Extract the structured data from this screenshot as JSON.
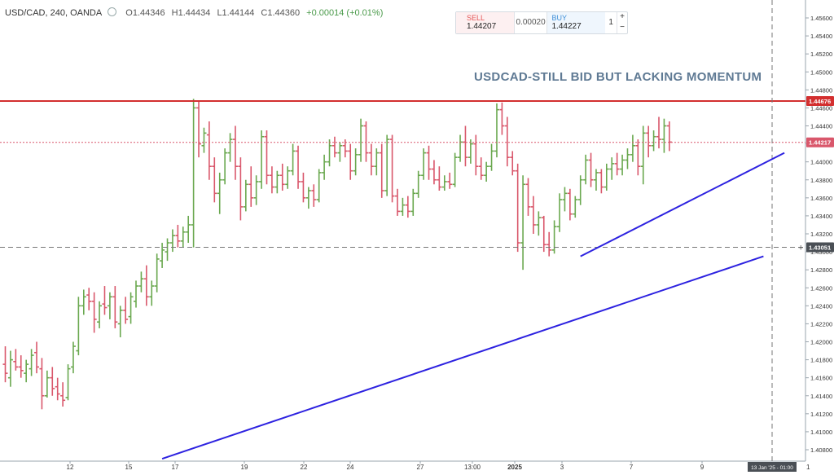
{
  "legend": {
    "symbol": "USD/CAD, 240, OANDA",
    "open": "O1.44346",
    "high": "H1.44434",
    "low": "L1.44144",
    "close": "C1.44360",
    "change": "+0.00014 (+0.01%)"
  },
  "trade_panel": {
    "sell_label": "SELL",
    "sell_price": "1.44207",
    "spread": "0.00020",
    "buy_label": "BUY",
    "buy_price": "1.44227",
    "quantity": "1",
    "plus": "+",
    "minus": "−"
  },
  "annotation": "USDCAD-STILL BID BUT LACKING MOMENTUM",
  "price_axis": {
    "ticks": [
      "1.45600",
      "1.45400",
      "1.45200",
      "1.45000",
      "1.44800",
      "1.44600",
      "1.44400",
      "1.44200",
      "1.44000",
      "1.43800",
      "1.43600",
      "1.43400",
      "1.43200",
      "1.43000",
      "1.42800",
      "1.42600",
      "1.42400",
      "1.42200",
      "1.42000",
      "1.41800",
      "1.41600",
      "1.41400",
      "1.41200",
      "1.41000",
      "1.40800"
    ],
    "resistance_label": "1.44676",
    "current_label": "1.44217",
    "crosshair_label": "1.43051"
  },
  "time_axis": {
    "labels": [
      "12",
      "15",
      "17",
      "19",
      "22",
      "24",
      "27",
      "13:00",
      "2025",
      "3",
      "7",
      "9"
    ],
    "crosshair_label": "13 Jan '25 - 01:00",
    "corner_label": "1"
  },
  "colors": {
    "up": "#6aa84f",
    "down": "#d9576b",
    "resistance": "#d32f2f",
    "trendline": "#2d22e0",
    "annotation": "#5f7a94"
  },
  "chart_data": {
    "type": "ohlc",
    "levels": {
      "resistance": 1.44676,
      "last_price": 1.44217,
      "crosshair_price": 1.43051
    },
    "candles": [
      {
        "o": 1.4175,
        "h": 1.4195,
        "l": 1.4155,
        "c": 1.4165
      },
      {
        "o": 1.416,
        "h": 1.419,
        "l": 1.415,
        "c": 1.418
      },
      {
        "o": 1.4178,
        "h": 1.4192,
        "l": 1.4168,
        "c": 1.4172
      },
      {
        "o": 1.4172,
        "h": 1.4185,
        "l": 1.416,
        "c": 1.4168
      },
      {
        "o": 1.4165,
        "h": 1.418,
        "l": 1.4155,
        "c": 1.4175
      },
      {
        "o": 1.417,
        "h": 1.4192,
        "l": 1.4162,
        "c": 1.4185
      },
      {
        "o": 1.4188,
        "h": 1.42,
        "l": 1.4165,
        "c": 1.4172
      },
      {
        "o": 1.417,
        "h": 1.4182,
        "l": 1.4125,
        "c": 1.414
      },
      {
        "o": 1.414,
        "h": 1.4168,
        "l": 1.4138,
        "c": 1.416
      },
      {
        "o": 1.416,
        "h": 1.4172,
        "l": 1.414,
        "c": 1.4148
      },
      {
        "o": 1.415,
        "h": 1.416,
        "l": 1.4135,
        "c": 1.4142
      },
      {
        "o": 1.414,
        "h": 1.4155,
        "l": 1.4128,
        "c": 1.4135
      },
      {
        "o": 1.4138,
        "h": 1.4175,
        "l": 1.4135,
        "c": 1.417
      },
      {
        "o": 1.4172,
        "h": 1.42,
        "l": 1.4165,
        "c": 1.4195
      },
      {
        "o": 1.419,
        "h": 1.425,
        "l": 1.4185,
        "c": 1.424
      },
      {
        "o": 1.424,
        "h": 1.4258,
        "l": 1.423,
        "c": 1.425
      },
      {
        "o": 1.4252,
        "h": 1.426,
        "l": 1.4235,
        "c": 1.4245
      },
      {
        "o": 1.4245,
        "h": 1.4255,
        "l": 1.421,
        "c": 1.4225
      },
      {
        "o": 1.4222,
        "h": 1.4245,
        "l": 1.4215,
        "c": 1.424
      },
      {
        "o": 1.4242,
        "h": 1.4262,
        "l": 1.423,
        "c": 1.4238
      },
      {
        "o": 1.424,
        "h": 1.4255,
        "l": 1.4225,
        "c": 1.425
      },
      {
        "o": 1.425,
        "h": 1.4262,
        "l": 1.4215,
        "c": 1.4222
      },
      {
        "o": 1.422,
        "h": 1.424,
        "l": 1.4205,
        "c": 1.4235
      },
      {
        "o": 1.4235,
        "h": 1.425,
        "l": 1.422,
        "c": 1.4225
      },
      {
        "o": 1.4228,
        "h": 1.4255,
        "l": 1.422,
        "c": 1.425
      },
      {
        "o": 1.4245,
        "h": 1.4268,
        "l": 1.4238,
        "c": 1.4262
      },
      {
        "o": 1.4262,
        "h": 1.4278,
        "l": 1.4255,
        "c": 1.427
      },
      {
        "o": 1.427,
        "h": 1.4285,
        "l": 1.424,
        "c": 1.425
      },
      {
        "o": 1.425,
        "h": 1.4268,
        "l": 1.424,
        "c": 1.4262
      },
      {
        "o": 1.4262,
        "h": 1.4298,
        "l": 1.4255,
        "c": 1.4292
      },
      {
        "o": 1.429,
        "h": 1.431,
        "l": 1.4282,
        "c": 1.4302
      },
      {
        "o": 1.43,
        "h": 1.4315,
        "l": 1.429,
        "c": 1.431
      },
      {
        "o": 1.431,
        "h": 1.4325,
        "l": 1.43,
        "c": 1.4318
      },
      {
        "o": 1.4318,
        "h": 1.433,
        "l": 1.4305,
        "c": 1.4312
      },
      {
        "o": 1.4312,
        "h": 1.4328,
        "l": 1.4305,
        "c": 1.4322
      },
      {
        "o": 1.4322,
        "h": 1.434,
        "l": 1.431,
        "c": 1.433
      },
      {
        "o": 1.433,
        "h": 1.447,
        "l": 1.4305,
        "c": 1.446
      },
      {
        "o": 1.446,
        "h": 1.4468,
        "l": 1.4405,
        "c": 1.442
      },
      {
        "o": 1.4418,
        "h": 1.4438,
        "l": 1.441,
        "c": 1.4432
      },
      {
        "o": 1.443,
        "h": 1.4445,
        "l": 1.438,
        "c": 1.4395
      },
      {
        "o": 1.4395,
        "h": 1.4405,
        "l": 1.4355,
        "c": 1.4365
      },
      {
        "o": 1.4365,
        "h": 1.4388,
        "l": 1.4342,
        "c": 1.438
      },
      {
        "o": 1.438,
        "h": 1.4415,
        "l": 1.4375,
        "c": 1.441
      },
      {
        "o": 1.441,
        "h": 1.4432,
        "l": 1.44,
        "c": 1.4425
      },
      {
        "o": 1.4425,
        "h": 1.444,
        "l": 1.438,
        "c": 1.4395
      },
      {
        "o": 1.4395,
        "h": 1.4405,
        "l": 1.4335,
        "c": 1.435
      },
      {
        "o": 1.435,
        "h": 1.438,
        "l": 1.4345,
        "c": 1.4375
      },
      {
        "o": 1.4375,
        "h": 1.4395,
        "l": 1.435,
        "c": 1.436
      },
      {
        "o": 1.436,
        "h": 1.4385,
        "l": 1.4352,
        "c": 1.4378
      },
      {
        "o": 1.4378,
        "h": 1.4435,
        "l": 1.437,
        "c": 1.4428
      },
      {
        "o": 1.4428,
        "h": 1.4435,
        "l": 1.4375,
        "c": 1.4385
      },
      {
        "o": 1.4385,
        "h": 1.4395,
        "l": 1.4365,
        "c": 1.4372
      },
      {
        "o": 1.4372,
        "h": 1.439,
        "l": 1.4365,
        "c": 1.4385
      },
      {
        "o": 1.4385,
        "h": 1.4398,
        "l": 1.4368,
        "c": 1.4375
      },
      {
        "o": 1.4375,
        "h": 1.4395,
        "l": 1.437,
        "c": 1.439
      },
      {
        "o": 1.439,
        "h": 1.442,
        "l": 1.4385,
        "c": 1.4412
      },
      {
        "o": 1.4412,
        "h": 1.4418,
        "l": 1.437,
        "c": 1.4378
      },
      {
        "o": 1.4378,
        "h": 1.4388,
        "l": 1.4355,
        "c": 1.436
      },
      {
        "o": 1.436,
        "h": 1.4372,
        "l": 1.4348,
        "c": 1.4368
      },
      {
        "o": 1.4368,
        "h": 1.4375,
        "l": 1.435,
        "c": 1.4358
      },
      {
        "o": 1.4358,
        "h": 1.4392,
        "l": 1.4355,
        "c": 1.4388
      },
      {
        "o": 1.4388,
        "h": 1.4408,
        "l": 1.438,
        "c": 1.44
      },
      {
        "o": 1.44,
        "h": 1.4425,
        "l": 1.4395,
        "c": 1.4418
      },
      {
        "o": 1.4418,
        "h": 1.4428,
        "l": 1.4405,
        "c": 1.441
      },
      {
        "o": 1.441,
        "h": 1.4422,
        "l": 1.44,
        "c": 1.4418
      },
      {
        "o": 1.4418,
        "h": 1.4425,
        "l": 1.4405,
        "c": 1.4412
      },
      {
        "o": 1.4412,
        "h": 1.442,
        "l": 1.438,
        "c": 1.439
      },
      {
        "o": 1.439,
        "h": 1.4415,
        "l": 1.4385,
        "c": 1.4408
      },
      {
        "o": 1.4408,
        "h": 1.4448,
        "l": 1.44,
        "c": 1.444
      },
      {
        "o": 1.444,
        "h": 1.4445,
        "l": 1.44,
        "c": 1.441
      },
      {
        "o": 1.441,
        "h": 1.442,
        "l": 1.4385,
        "c": 1.4395
      },
      {
        "o": 1.4395,
        "h": 1.4415,
        "l": 1.4385,
        "c": 1.441
      },
      {
        "o": 1.441,
        "h": 1.442,
        "l": 1.436,
        "c": 1.4368
      },
      {
        "o": 1.4368,
        "h": 1.443,
        "l": 1.4362,
        "c": 1.4425
      },
      {
        "o": 1.4425,
        "h": 1.443,
        "l": 1.4355,
        "c": 1.4362
      },
      {
        "o": 1.4362,
        "h": 1.437,
        "l": 1.434,
        "c": 1.4345
      },
      {
        "o": 1.4345,
        "h": 1.436,
        "l": 1.434,
        "c": 1.4352
      },
      {
        "o": 1.4352,
        "h": 1.4362,
        "l": 1.4338,
        "c": 1.4345
      },
      {
        "o": 1.4345,
        "h": 1.437,
        "l": 1.434,
        "c": 1.4365
      },
      {
        "o": 1.4365,
        "h": 1.439,
        "l": 1.436,
        "c": 1.4385
      },
      {
        "o": 1.4385,
        "h": 1.4415,
        "l": 1.438,
        "c": 1.441
      },
      {
        "o": 1.441,
        "h": 1.4418,
        "l": 1.438,
        "c": 1.4392
      },
      {
        "o": 1.4392,
        "h": 1.4402,
        "l": 1.4375,
        "c": 1.438
      },
      {
        "o": 1.438,
        "h": 1.4395,
        "l": 1.4368,
        "c": 1.4372
      },
      {
        "o": 1.4372,
        "h": 1.4385,
        "l": 1.4368,
        "c": 1.4378
      },
      {
        "o": 1.4378,
        "h": 1.4388,
        "l": 1.437,
        "c": 1.4375
      },
      {
        "o": 1.4375,
        "h": 1.441,
        "l": 1.4372,
        "c": 1.4405
      },
      {
        "o": 1.4405,
        "h": 1.443,
        "l": 1.44,
        "c": 1.4422
      },
      {
        "o": 1.4422,
        "h": 1.444,
        "l": 1.4395,
        "c": 1.4405
      },
      {
        "o": 1.4405,
        "h": 1.4425,
        "l": 1.4398,
        "c": 1.442
      },
      {
        "o": 1.442,
        "h": 1.443,
        "l": 1.4385,
        "c": 1.4395
      },
      {
        "o": 1.4395,
        "h": 1.4405,
        "l": 1.438,
        "c": 1.4385
      },
      {
        "o": 1.4385,
        "h": 1.44,
        "l": 1.4378,
        "c": 1.4395
      },
      {
        "o": 1.4395,
        "h": 1.442,
        "l": 1.439,
        "c": 1.4412
      },
      {
        "o": 1.4412,
        "h": 1.4465,
        "l": 1.4405,
        "c": 1.4458
      },
      {
        "o": 1.4458,
        "h": 1.4466,
        "l": 1.443,
        "c": 1.444
      },
      {
        "o": 1.444,
        "h": 1.445,
        "l": 1.4395,
        "c": 1.4405
      },
      {
        "o": 1.4405,
        "h": 1.4412,
        "l": 1.4385,
        "c": 1.439
      },
      {
        "o": 1.439,
        "h": 1.4398,
        "l": 1.43,
        "c": 1.431
      },
      {
        "o": 1.431,
        "h": 1.4385,
        "l": 1.428,
        "c": 1.4375
      },
      {
        "o": 1.4375,
        "h": 1.4382,
        "l": 1.434,
        "c": 1.435
      },
      {
        "o": 1.435,
        "h": 1.4362,
        "l": 1.432,
        "c": 1.433
      },
      {
        "o": 1.433,
        "h": 1.4345,
        "l": 1.4318,
        "c": 1.4338
      },
      {
        "o": 1.4338,
        "h": 1.434,
        "l": 1.43,
        "c": 1.4308
      },
      {
        "o": 1.4308,
        "h": 1.4322,
        "l": 1.4295,
        "c": 1.4302
      },
      {
        "o": 1.4302,
        "h": 1.4335,
        "l": 1.4298,
        "c": 1.4328
      },
      {
        "o": 1.4328,
        "h": 1.4365,
        "l": 1.4322,
        "c": 1.4358
      },
      {
        "o": 1.4358,
        "h": 1.4372,
        "l": 1.4345,
        "c": 1.4365
      },
      {
        "o": 1.4365,
        "h": 1.437,
        "l": 1.4335,
        "c": 1.4342
      },
      {
        "o": 1.4342,
        "h": 1.4362,
        "l": 1.4338,
        "c": 1.4358
      },
      {
        "o": 1.4358,
        "h": 1.4385,
        "l": 1.4352,
        "c": 1.438
      },
      {
        "o": 1.438,
        "h": 1.4408,
        "l": 1.4375,
        "c": 1.4402
      },
      {
        "o": 1.4402,
        "h": 1.441,
        "l": 1.4372,
        "c": 1.438
      },
      {
        "o": 1.438,
        "h": 1.4392,
        "l": 1.4368,
        "c": 1.4388
      },
      {
        "o": 1.4388,
        "h": 1.4392,
        "l": 1.4365,
        "c": 1.4372
      },
      {
        "o": 1.4372,
        "h": 1.4398,
        "l": 1.4368,
        "c": 1.4392
      },
      {
        "o": 1.4392,
        "h": 1.4405,
        "l": 1.438,
        "c": 1.4398
      },
      {
        "o": 1.4398,
        "h": 1.441,
        "l": 1.4385,
        "c": 1.4392
      },
      {
        "o": 1.4392,
        "h": 1.4408,
        "l": 1.4385,
        "c": 1.4402
      },
      {
        "o": 1.4402,
        "h": 1.4415,
        "l": 1.4392,
        "c": 1.4408
      },
      {
        "o": 1.4408,
        "h": 1.443,
        "l": 1.44,
        "c": 1.4418
      },
      {
        "o": 1.4418,
        "h": 1.4425,
        "l": 1.4385,
        "c": 1.4395
      },
      {
        "o": 1.4395,
        "h": 1.444,
        "l": 1.4375,
        "c": 1.4432
      },
      {
        "o": 1.4432,
        "h": 1.444,
        "l": 1.4405,
        "c": 1.4418
      },
      {
        "o": 1.4418,
        "h": 1.4435,
        "l": 1.4412,
        "c": 1.4428
      },
      {
        "o": 1.4428,
        "h": 1.445,
        "l": 1.4415,
        "c": 1.4425
      },
      {
        "o": 1.4425,
        "h": 1.4448,
        "l": 1.441,
        "c": 1.444
      },
      {
        "o": 1.444,
        "h": 1.4445,
        "l": 1.4412,
        "c": 1.4422
      }
    ],
    "trendlines": [
      {
        "name": "lower",
        "from": {
          "bar": 30,
          "price": 1.407
        },
        "to": {
          "bar": 145,
          "price": 1.4295
        }
      },
      {
        "name": "upper",
        "from": {
          "bar": 110,
          "price": 1.4295
        },
        "to": {
          "bar": 149,
          "price": 1.441
        }
      }
    ]
  }
}
